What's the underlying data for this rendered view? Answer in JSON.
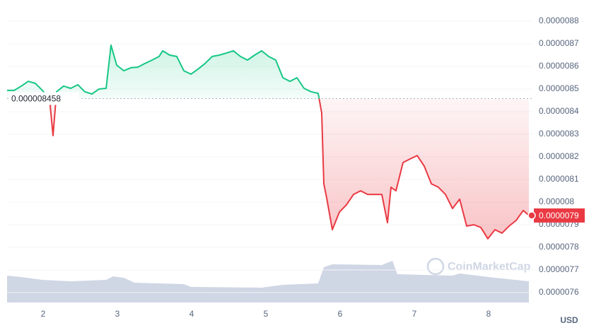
{
  "chart_data": {
    "type": "line",
    "series": [
      {
        "name": "Price",
        "color_up": "#16c784",
        "color_down": "#ea3943",
        "x": [
          1.514,
          1.61,
          1.705,
          1.8,
          1.895,
          1.99,
          2.086,
          2.133,
          2.181,
          2.276,
          2.371,
          2.467,
          2.562,
          2.657,
          2.752,
          2.848,
          2.914,
          2.99,
          3.086,
          3.181,
          3.276,
          3.371,
          3.467,
          3.562,
          3.61,
          3.705,
          3.8,
          3.895,
          3.99,
          4.086,
          4.181,
          4.276,
          4.371,
          4.467,
          4.562,
          4.657,
          4.752,
          4.848,
          4.943,
          5.038,
          5.133,
          5.229,
          5.324,
          5.419,
          5.514,
          5.61,
          5.705,
          5.752,
          5.781,
          5.819,
          5.895,
          5.99,
          6.086,
          6.181,
          6.276,
          6.371,
          6.467,
          6.562,
          6.638,
          6.686,
          6.752,
          6.848,
          6.943,
          7.038,
          7.133,
          7.229,
          7.324,
          7.419,
          7.514,
          7.61,
          7.705,
          7.8,
          7.895,
          7.99,
          8.086,
          8.181,
          8.276,
          8.371,
          8.467,
          8.543
        ],
        "values": [
          8.494e-06,
          8.494e-06,
          8.513e-06,
          8.534e-06,
          8.525e-06,
          8.494e-06,
          8.456e-06,
          8.294e-06,
          8.488e-06,
          8.513e-06,
          8.503e-06,
          8.519e-06,
          8.488e-06,
          8.478e-06,
          8.5e-06,
          8.503e-06,
          8.694e-06,
          8.606e-06,
          8.581e-06,
          8.594e-06,
          8.597e-06,
          8.613e-06,
          8.628e-06,
          8.644e-06,
          8.669e-06,
          8.65e-06,
          8.644e-06,
          8.581e-06,
          8.566e-06,
          8.588e-06,
          8.613e-06,
          8.644e-06,
          8.65e-06,
          8.659e-06,
          8.669e-06,
          8.644e-06,
          8.628e-06,
          8.65e-06,
          8.669e-06,
          8.644e-06,
          8.628e-06,
          8.55e-06,
          8.534e-06,
          8.55e-06,
          8.503e-06,
          8.488e-06,
          8.481e-06,
          8.394e-06,
          8.081e-06,
          8.019e-06,
          7.878e-06,
          7.956e-06,
          7.988e-06,
          8.034e-06,
          8.05e-06,
          8.034e-06,
          8.034e-06,
          8.034e-06,
          7.909e-06,
          8.066e-06,
          8.05e-06,
          8.175e-06,
          8.191e-06,
          8.206e-06,
          8.159e-06,
          8.081e-06,
          8.066e-06,
          8.034e-06,
          7.972e-06,
          8.013e-06,
          7.894e-06,
          7.9e-06,
          7.888e-06,
          7.838e-06,
          7.878e-06,
          7.863e-06,
          7.894e-06,
          7.919e-06,
          7.963e-06,
          7.941e-06
        ]
      }
    ],
    "baseline": 8.458e-06,
    "current_price": 7.9e-06,
    "xlim": [
      1.514,
      8.6
    ],
    "xticks": [
      2,
      3,
      4,
      5,
      6,
      7,
      8
    ],
    "ylim": [
      7.6e-06,
      8.8e-06
    ],
    "yticks": [
      7.6e-06,
      7.7e-06,
      7.8e-06,
      7.9e-06,
      8e-06,
      8.1e-06,
      8.2e-06,
      8.3e-06,
      8.4e-06,
      8.5e-06,
      8.6e-06,
      8.7e-06,
      8.8e-06
    ],
    "y_unit": "USD",
    "watermark": "CoinMarketCap",
    "grid": true
  }
}
